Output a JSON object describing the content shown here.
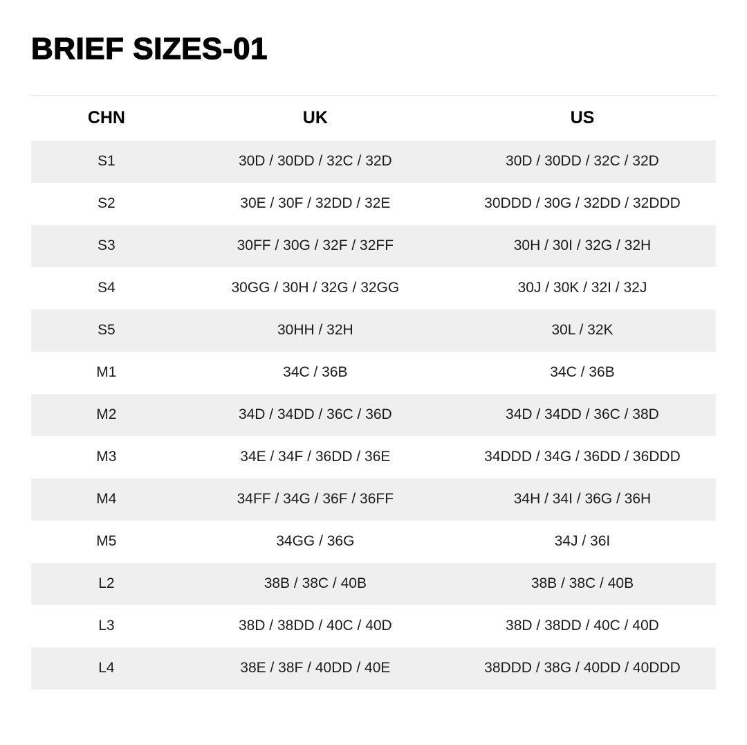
{
  "page_title": "BRIEF SIZES-01",
  "colors": {
    "background": "#ffffff",
    "stripe": "#efefef",
    "table_top_border": "#dbdbdb",
    "cell_text": "#1a1a1a",
    "header_text": "#000000"
  },
  "chart_data": {
    "type": "table",
    "title": "BRIEF SIZES-01",
    "columns": [
      "CHN",
      "UK",
      "US"
    ],
    "rows": [
      [
        "S1",
        "30D / 30DD / 32C / 32D",
        "30D / 30DD / 32C / 32D"
      ],
      [
        "S2",
        "30E / 30F / 32DD / 32E",
        "30DDD / 30G / 32DD / 32DDD"
      ],
      [
        "S3",
        "30FF / 30G / 32F / 32FF",
        "30H / 30I / 32G / 32H"
      ],
      [
        "S4",
        "30GG / 30H / 32G / 32GG",
        "30J / 30K / 32I / 32J"
      ],
      [
        "S5",
        "30HH / 32H",
        "30L / 32K"
      ],
      [
        "M1",
        "34C / 36B",
        "34C / 36B"
      ],
      [
        "M2",
        "34D / 34DD / 36C / 36D",
        "34D / 34DD / 36C / 38D"
      ],
      [
        "M3",
        "34E / 34F / 36DD / 36E",
        "34DDD / 34G / 36DD / 36DDD"
      ],
      [
        "M4",
        "34FF / 34G / 36F / 36FF",
        "34H / 34I / 36G / 36H"
      ],
      [
        "M5",
        "34GG / 36G",
        "34J / 36I"
      ],
      [
        "L2",
        "38B / 38C / 40B",
        "38B / 38C / 40B"
      ],
      [
        "L3",
        "38D / 38DD / 40C / 40D",
        "38D / 38DD / 40C / 40D"
      ],
      [
        "L4",
        "38E / 38F / 40DD / 40E",
        "38DDD / 38G / 40DD / 40DDD"
      ]
    ],
    "layout": {
      "striped_rows": "odd",
      "column_alignment": "center",
      "grid": "none"
    }
  }
}
